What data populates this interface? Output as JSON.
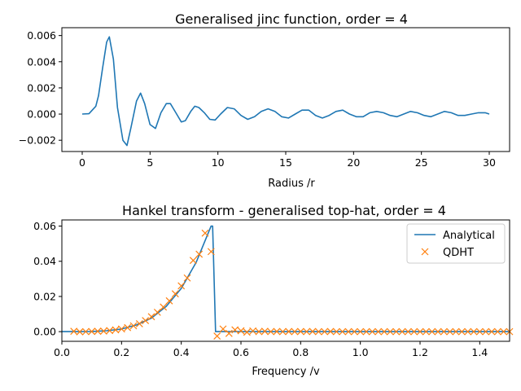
{
  "chart_data": [
    {
      "type": "line",
      "title": "Generalised jinc function, order = 4",
      "xlabel": "Radius /r",
      "ylabel": "",
      "xlim": [
        -1.5,
        31.5
      ],
      "ylim": [
        -0.00286,
        0.0066
      ],
      "xticks": [
        0,
        5,
        10,
        15,
        20,
        25,
        30
      ],
      "xtick_labels": [
        "0",
        "5",
        "10",
        "15",
        "20",
        "25",
        "30"
      ],
      "yticks": [
        -0.002,
        0.0,
        0.002,
        0.004,
        0.006
      ],
      "ytick_labels": [
        "−0.002",
        "0.000",
        "0.002",
        "0.004",
        "0.006"
      ],
      "grid": false,
      "colors": {
        "line": "#1f77b4"
      },
      "series": [
        {
          "x": [
            0,
            0.5,
            1.0,
            1.2,
            1.5,
            1.8,
            2.0,
            2.3,
            2.6,
            3.0,
            3.3,
            3.6,
            4.0,
            4.3,
            4.6,
            5.0,
            5.4,
            5.8,
            6.2,
            6.5,
            6.9,
            7.3,
            7.6,
            8.0,
            8.3,
            8.6,
            9.0,
            9.4,
            9.8,
            10.2,
            10.7,
            11.2,
            11.7,
            12.2,
            12.7,
            13.2,
            13.7,
            14.2,
            14.7,
            15.2,
            15.7,
            16.2,
            16.7,
            17.2,
            17.7,
            18.2,
            18.7,
            19.2,
            19.7,
            20.2,
            20.7,
            21.2,
            21.7,
            22.2,
            22.7,
            23.2,
            23.7,
            24.2,
            24.7,
            25.2,
            25.7,
            26.2,
            26.7,
            27.2,
            27.7,
            28.2,
            28.7,
            29.2,
            29.7,
            30.0
          ],
          "y": [
            0.0,
            3e-05,
            0.0006,
            0.0014,
            0.0035,
            0.0055,
            0.0059,
            0.0042,
            0.0005,
            -0.002,
            -0.0024,
            -0.001,
            0.001,
            0.0016,
            0.0008,
            -0.0008,
            -0.0011,
            0.0001,
            0.0008,
            0.0008,
            0.0001,
            -0.0006,
            -0.0005,
            0.0002,
            0.0006,
            0.0005,
            0.0001,
            -0.0004,
            -0.00045,
            0.0,
            0.0005,
            0.0004,
            -0.0001,
            -0.0004,
            -0.0002,
            0.0002,
            0.0004,
            0.0002,
            -0.0002,
            -0.0003,
            0.0,
            0.0003,
            0.0003,
            -0.0001,
            -0.0003,
            -0.0001,
            0.0002,
            0.0003,
            0.0,
            -0.0002,
            -0.0002,
            0.0001,
            0.0002,
            0.0001,
            -0.0001,
            -0.0002,
            0.0,
            0.0002,
            0.0001,
            -0.0001,
            -0.0002,
            0.0,
            0.0002,
            0.0001,
            -0.0001,
            -0.0001,
            0.0,
            0.0001,
            0.0001,
            0.0
          ]
        }
      ]
    },
    {
      "type": "line",
      "title": "Hankel transform - generalised top-hat, order = 4",
      "xlabel": "Frequency /v",
      "ylabel": "",
      "xlim": [
        0.0,
        1.5
      ],
      "ylim": [
        -0.0055,
        0.0635
      ],
      "xticks": [
        0.0,
        0.2,
        0.4,
        0.6,
        0.8,
        1.0,
        1.2,
        1.4
      ],
      "xtick_labels": [
        "0.0",
        "0.2",
        "0.4",
        "0.6",
        "0.8",
        "1.0",
        "1.2",
        "1.4"
      ],
      "yticks": [
        0.0,
        0.02,
        0.04,
        0.06
      ],
      "ytick_labels": [
        "0.00",
        "0.02",
        "0.04",
        "0.06"
      ],
      "grid": false,
      "legend": {
        "position": "top-right",
        "entries": [
          {
            "label": "Analytical",
            "marker": "line",
            "color": "#1f77b4"
          },
          {
            "label": "QDHT",
            "marker": "x",
            "color": "#ff7f0e"
          }
        ]
      },
      "series": [
        {
          "name": "Analytical",
          "color": "#1f77b4",
          "x": [
            0.0,
            0.05,
            0.1,
            0.15,
            0.2,
            0.25,
            0.3,
            0.35,
            0.4,
            0.45,
            0.5,
            0.505,
            0.51,
            0.515,
            1.5
          ],
          "y": [
            0.0,
            0.0,
            0.0001,
            0.0005,
            0.0015,
            0.0038,
            0.0077,
            0.0144,
            0.0246,
            0.0394,
            0.06,
            0.06,
            0.03,
            0.0,
            0.0
          ]
        },
        {
          "name": "QDHT",
          "color": "#ff7f0e",
          "x": [
            0.04,
            0.06,
            0.08,
            0.1,
            0.12,
            0.14,
            0.16,
            0.18,
            0.2,
            0.22,
            0.24,
            0.26,
            0.28,
            0.3,
            0.32,
            0.34,
            0.36,
            0.38,
            0.4,
            0.42,
            0.44,
            0.46,
            0.48,
            0.5,
            0.52,
            0.54,
            0.56,
            0.58,
            0.6,
            0.62,
            0.64,
            0.66,
            0.68,
            0.7,
            0.72,
            0.74,
            0.76,
            0.78,
            0.8,
            0.82,
            0.84,
            0.86,
            0.88,
            0.9,
            0.92,
            0.94,
            0.96,
            0.98,
            1.0,
            1.02,
            1.04,
            1.06,
            1.08,
            1.1,
            1.12,
            1.14,
            1.16,
            1.18,
            1.2,
            1.22,
            1.24,
            1.26,
            1.28,
            1.3,
            1.32,
            1.34,
            1.36,
            1.38,
            1.4,
            1.42,
            1.44,
            1.46,
            1.48,
            1.5
          ],
          "y": [
            0.0002,
            -0.0001,
            0.0,
            0.0001,
            0.0002,
            0.0003,
            0.0006,
            0.001,
            0.0015,
            0.0023,
            0.0033,
            0.0045,
            0.0063,
            0.0085,
            0.011,
            0.014,
            0.0175,
            0.0215,
            0.026,
            0.0305,
            0.0405,
            0.044,
            0.056,
            0.0455,
            -0.0025,
            0.0015,
            -0.001,
            0.001,
            0.0005,
            -0.0003,
            0.0004,
            0.0,
            0.0002,
            0.0,
            0.0001,
            0.0,
            0.0001,
            0.0,
            0.0001,
            0.0,
            0.0001,
            0.0,
            0.0,
            0.0001,
            0.0,
            0.0,
            0.0,
            0.0,
            0.0,
            0.0,
            0.0,
            0.0,
            0.0,
            0.0,
            0.0,
            0.0,
            0.0,
            0.0,
            0.0,
            0.0,
            0.0,
            0.0,
            0.0,
            0.0,
            0.0,
            0.0,
            0.0,
            0.0,
            0.0,
            0.0,
            0.0,
            0.0,
            0.0,
            0.0
          ]
        }
      ]
    }
  ]
}
